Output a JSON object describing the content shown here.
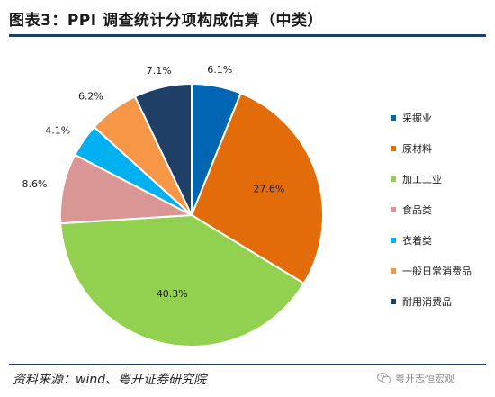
{
  "header": {
    "title": "图表3：PPI 调查统计分项构成估算（中类）"
  },
  "chart_data": {
    "type": "pie",
    "title": "图表3：PPI 调查统计分项构成估算（中类）",
    "start_angle_deg": 0,
    "direction": "clockwise",
    "legend_position": "right",
    "slices": [
      {
        "name": "采掘业",
        "value": 6.1,
        "label": "6.1%",
        "color": "#0066b3"
      },
      {
        "name": "原材料",
        "value": 27.6,
        "label": "27.6%",
        "color": "#e36c0a"
      },
      {
        "name": "加工工业",
        "value": 40.3,
        "label": "40.3%",
        "color": "#92d050"
      },
      {
        "name": "食品类",
        "value": 8.6,
        "label": "8.6%",
        "color": "#d99694"
      },
      {
        "name": "衣着类",
        "value": 4.1,
        "label": "4.1%",
        "color": "#00b0f0"
      },
      {
        "name": "一般日常消费品",
        "value": 6.2,
        "label": "6.2%",
        "color": "#f79646"
      },
      {
        "name": "耐用消费品",
        "value": 7.1,
        "label": "7.1%",
        "color": "#1f3f66"
      }
    ]
  },
  "footer": {
    "source": "资料来源：wind、粤开证券研究院",
    "watermark": "粤开志恒宏观",
    "watermark_icon": "wechat-icon"
  }
}
